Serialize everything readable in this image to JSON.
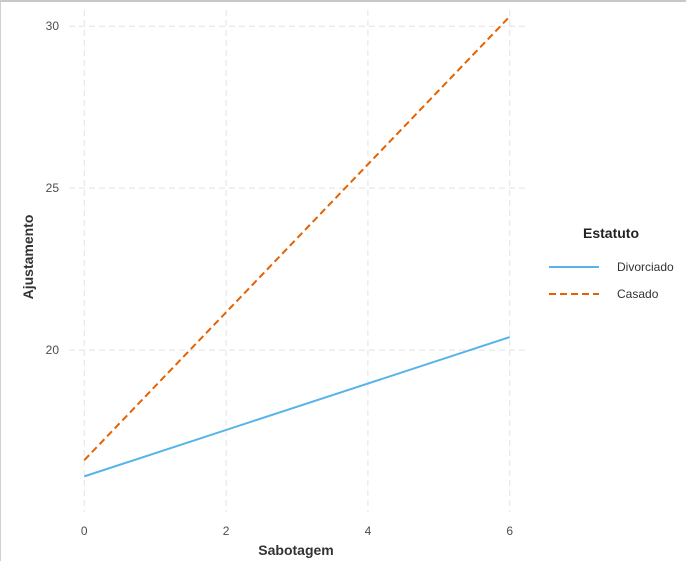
{
  "chart_data": {
    "type": "line",
    "title": "",
    "xlabel": "Sabotagem",
    "ylabel": "Ajustamento",
    "xlim": [
      -0.3,
      6.3
    ],
    "ylim": [
      15,
      30.5
    ],
    "x_ticks": [
      0,
      2,
      4,
      6
    ],
    "x_tick_labels": [
      "0",
      "2",
      "4",
      "6"
    ],
    "y_ticks": [
      20,
      25,
      30
    ],
    "y_tick_labels": [
      "20",
      "25",
      "30"
    ],
    "grid": true,
    "legend": {
      "title": "Estatuto",
      "placement": "right"
    },
    "series": [
      {
        "name": "Divorciado",
        "color": "#56b4e9",
        "linestyle": "solid",
        "x": [
          0,
          6
        ],
        "y": [
          16.1,
          20.4
        ]
      },
      {
        "name": "Casado",
        "color": "#e66100",
        "linestyle": "dashed",
        "x": [
          0,
          6
        ],
        "y": [
          16.6,
          30.3
        ]
      }
    ]
  }
}
